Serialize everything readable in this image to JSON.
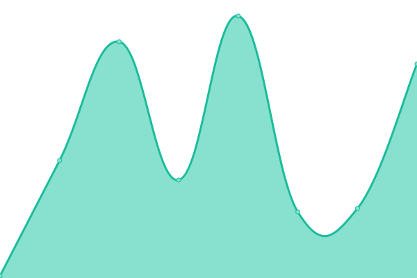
{
  "chart_data": {
    "type": "area",
    "title": "",
    "xlabel": "",
    "ylabel": "",
    "x": [
      0,
      1,
      2,
      3,
      4,
      5,
      6,
      7
    ],
    "series": [
      {
        "values": [
          3,
          169,
          340,
          141,
          377,
          95,
          100,
          308
        ]
      }
    ],
    "ylim": [
      0,
      400
    ],
    "xlim": [
      0,
      7
    ],
    "grid": false,
    "axes_visible": false,
    "smooth": true,
    "colors": {
      "line": "#1abc9c",
      "fill": "#88e0ce",
      "point_fill": "#88e0ce"
    }
  }
}
